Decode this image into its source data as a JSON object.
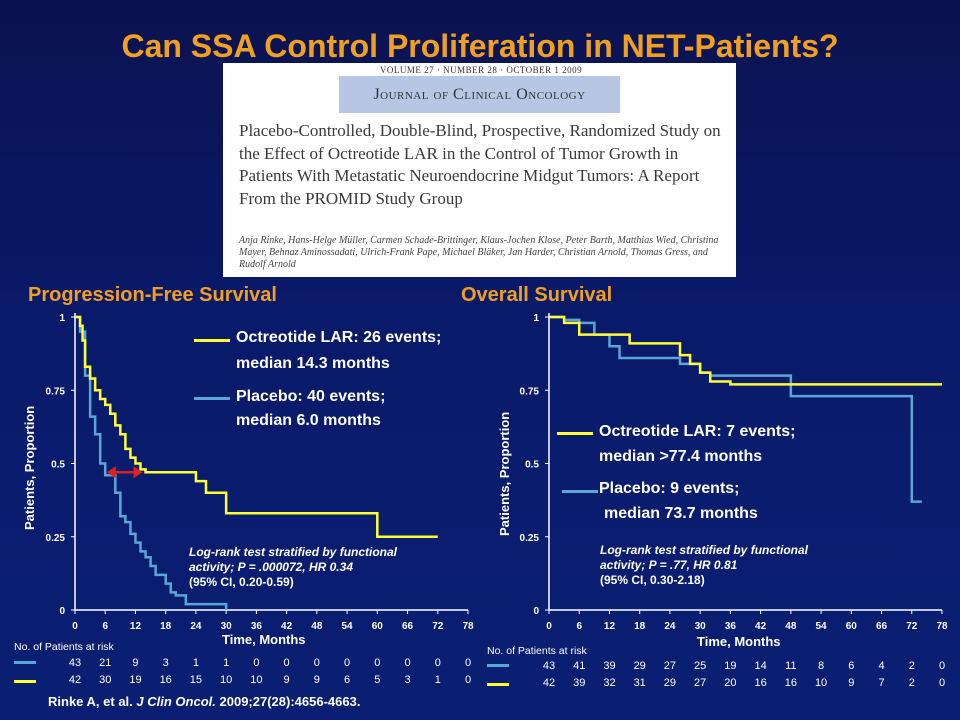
{
  "title": "Can SSA Control Proliferation in NET-Patients?",
  "paper": {
    "volume_line": "VOLUME 27 · NUMBER 28 · OCTOBER 1 2009",
    "journal": "Journal of Clinical Oncology",
    "title": "Placebo-Controlled, Double-Blind, Prospective, Randomized Study on the Effect of Octreotide LAR in the Control of Tumor Growth in Patients With Metastatic Neuroendocrine Midgut Tumors: A Report From the PROMID Study Group",
    "authors": "Anja Rinke, Hans-Helge Müller, Carmen Schade-Brittinger, Klaus-Jochen Klose, Peter Barth, Matthias Wied, Christina Mayer, Behnaz Aminossadati, Ulrich-Frank Pape, Michael Bläker, Jan Harder, Christian Arnold, Thomas Gress, and Rudolf Arnold"
  },
  "colors": {
    "octreotide": "#ffff33",
    "placebo": "#5aa6d6",
    "accent": "#f0a020",
    "arrow": "#e02020"
  },
  "pfs": {
    "heading": "Progression-Free Survival",
    "ylabel": "Patients, Proportion",
    "xlabel": "Time, Months",
    "legend_oct_1": "Octreotide LAR: 26 events;",
    "legend_oct_2": "median 14.3 months",
    "legend_pla_1": "Placebo: 40 events;",
    "legend_pla_2": "median 6.0 months",
    "stat_1": "Log-rank test stratified by functional",
    "stat_2": "activity; P = .000072, HR 0.34",
    "stat_3": "(95% CI, 0.20-0.59)",
    "risk_header": "No. of Patients at risk",
    "risk_placebo": [
      "43",
      "21",
      "9",
      "3",
      "1",
      "1",
      "0",
      "0",
      "0",
      "0",
      "0",
      "0",
      "0",
      "0"
    ],
    "risk_octreotide": [
      "42",
      "30",
      "19",
      "16",
      "15",
      "10",
      "10",
      "9",
      "9",
      "6",
      "5",
      "3",
      "1",
      "0"
    ]
  },
  "os": {
    "heading": "Overall Survival",
    "ylabel": "Patients, Proportion",
    "xlabel": "Time, Months",
    "legend_oct_1": "Octreotide LAR: 7 events;",
    "legend_oct_2": "median >77.4 months",
    "legend_pla_1": "Placebo: 9 events;",
    "legend_pla_2": "median 73.7 months",
    "stat_1": "Log-rank test stratified by functional",
    "stat_2": "activity; P = .77, HR 0.81",
    "stat_3": "(95% CI, 0.30-2.18)",
    "risk_header": "No. of Patients at risk",
    "risk_placebo": [
      "43",
      "41",
      "39",
      "29",
      "27",
      "25",
      "19",
      "14",
      "11",
      "8",
      "6",
      "4",
      "2",
      "0"
    ],
    "risk_octreotide": [
      "42",
      "39",
      "32",
      "31",
      "29",
      "27",
      "20",
      "16",
      "16",
      "10",
      "9",
      "7",
      "2",
      "0"
    ]
  },
  "citation": {
    "authors": "Rinke A, et al.",
    "journal": "J Clin Oncol.",
    "ref": "2009;27(28):4656-4663."
  },
  "chart_data": [
    {
      "type": "line",
      "title": "Progression-Free Survival",
      "xlabel": "Time, Months",
      "ylabel": "Patients, Proportion",
      "xlim": [
        0,
        78
      ],
      "ylim": [
        0,
        1
      ],
      "xticks": [
        "0",
        "6",
        "12",
        "18",
        "24",
        "30",
        "36",
        "42",
        "48",
        "54",
        "60",
        "66",
        "72",
        "78"
      ],
      "yticks": [
        "0",
        "0.25",
        "0.5",
        "0.75",
        "1"
      ],
      "series": [
        {
          "name": "Octreotide LAR",
          "step": true,
          "x": [
            0,
            1,
            1.5,
            2,
            3,
            4,
            5,
            6,
            7,
            8,
            9,
            10,
            11,
            12,
            13,
            14,
            15,
            16,
            20,
            24,
            26,
            30,
            40,
            50,
            60,
            64,
            72
          ],
          "y": [
            1,
            0.97,
            0.92,
            0.83,
            0.79,
            0.75,
            0.72,
            0.7,
            0.67,
            0.63,
            0.6,
            0.55,
            0.52,
            0.5,
            0.48,
            0.47,
            0.47,
            0.47,
            0.47,
            0.44,
            0.4,
            0.33,
            0.33,
            0.33,
            0.25,
            0.25,
            0.25
          ]
        },
        {
          "name": "Placebo",
          "step": true,
          "x": [
            0,
            1,
            2,
            3,
            4,
            5,
            6,
            7,
            8,
            9,
            10,
            11,
            12,
            13,
            14,
            15,
            16,
            18,
            19,
            20,
            22,
            24,
            30
          ],
          "y": [
            1,
            0.95,
            0.8,
            0.66,
            0.6,
            0.5,
            0.46,
            0.46,
            0.4,
            0.32,
            0.3,
            0.26,
            0.23,
            0.2,
            0.18,
            0.15,
            0.12,
            0.09,
            0.06,
            0.05,
            0.02,
            0.02,
            0.0
          ]
        }
      ]
    },
    {
      "type": "line",
      "title": "Overall Survival",
      "xlabel": "Time, Months",
      "ylabel": "Patients, Proportion",
      "xlim": [
        0,
        78
      ],
      "ylim": [
        0,
        1
      ],
      "xticks": [
        "0",
        "6",
        "12",
        "18",
        "24",
        "30",
        "36",
        "42",
        "48",
        "54",
        "60",
        "66",
        "72",
        "78"
      ],
      "yticks": [
        "0",
        "0.25",
        "0.5",
        "0.75",
        "1"
      ],
      "series": [
        {
          "name": "Octreotide LAR",
          "step": true,
          "x": [
            0,
            3,
            6,
            8,
            14,
            16,
            18,
            26,
            28,
            30,
            32,
            36,
            54,
            60,
            66,
            78
          ],
          "y": [
            1,
            0.98,
            0.94,
            0.94,
            0.94,
            0.91,
            0.91,
            0.87,
            0.84,
            0.81,
            0.78,
            0.77,
            0.77,
            0.77,
            0.77,
            0.77
          ]
        },
        {
          "name": "Placebo",
          "step": true,
          "x": [
            0,
            1,
            3,
            6,
            9,
            12,
            14,
            16,
            20,
            26,
            30,
            32,
            36,
            42,
            46,
            48,
            54,
            60,
            66,
            72,
            74
          ],
          "y": [
            1,
            1,
            0.99,
            0.98,
            0.94,
            0.9,
            0.86,
            0.86,
            0.86,
            0.84,
            0.81,
            0.8,
            0.8,
            0.8,
            0.8,
            0.73,
            0.73,
            0.73,
            0.73,
            0.37,
            0.37
          ]
        }
      ]
    }
  ]
}
